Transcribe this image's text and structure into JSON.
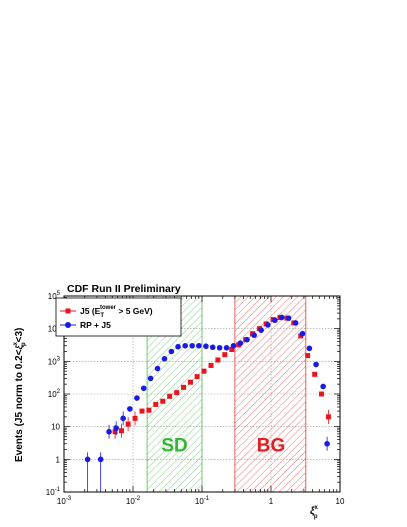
{
  "chart_data": {
    "type": "scatter",
    "title": "CDF Run II Preliminary",
    "ylabel": {
      "main": "Events (J5 norm to 0.2<",
      "xi_sup": "x",
      "xi_sub": "p",
      "end": "<3)"
    },
    "xlabel": {
      "sup": "x",
      "sub": "p"
    },
    "x_scale": "log",
    "y_scale": "log",
    "xlim": [
      0.001,
      10
    ],
    "ylim": [
      0.1,
      100000
    ],
    "x_ticks": [
      {
        "value": 0.001,
        "base": "10",
        "exp": "-3"
      },
      {
        "value": 0.01,
        "base": "10",
        "exp": "-2"
      },
      {
        "value": 0.1,
        "base": "10",
        "exp": "-1"
      },
      {
        "value": 1,
        "base": "1",
        "exp": ""
      },
      {
        "value": 10,
        "base": "10",
        "exp": ""
      }
    ],
    "y_ticks": [
      {
        "value": 0.1,
        "base": "10",
        "exp": "-1"
      },
      {
        "value": 1,
        "base": "1",
        "exp": ""
      },
      {
        "value": 10,
        "base": "10",
        "exp": ""
      },
      {
        "value": 100,
        "base": "10",
        "exp": "2"
      },
      {
        "value": 1000,
        "base": "10",
        "exp": "3"
      },
      {
        "value": 10000,
        "base": "10",
        "exp": "4"
      },
      {
        "value": 100000,
        "base": "10",
        "exp": "5"
      }
    ],
    "grid": true,
    "legend": {
      "position": "top-left",
      "entries": [
        {
          "label_main": "J5 (E",
          "label_sub": "T",
          "label_sup": "tower",
          "label_end": " > 5 GeV)",
          "color": "#e8141e",
          "marker": "square"
        },
        {
          "label_main": "RP + J5",
          "label_sub": "",
          "label_sup": "",
          "label_end": "",
          "color": "#1a1ae6",
          "marker": "circle"
        }
      ]
    },
    "bands": [
      {
        "label": "SD",
        "x_range": [
          0.016,
          0.1
        ],
        "color": "#33b533"
      },
      {
        "label": "BG",
        "x_range": [
          0.3,
          3.2
        ],
        "color": "#e02020"
      }
    ],
    "annotations": [
      {
        "text": "SD",
        "x": 0.04,
        "y": 3,
        "color": "#33b533"
      },
      {
        "text": "BG",
        "x": 1.0,
        "y": 3,
        "color": "#e02020"
      }
    ],
    "series": [
      {
        "name": "J5 (E_T^tower > 5 GeV)",
        "color": "#e8141e",
        "marker": "square",
        "points": [
          [
            0.0055,
            7
          ],
          [
            0.0068,
            7.5
          ],
          [
            0.0085,
            12
          ],
          [
            0.0107,
            18
          ],
          [
            0.0135,
            30
          ],
          [
            0.017,
            32
          ],
          [
            0.0214,
            48
          ],
          [
            0.027,
            60
          ],
          [
            0.034,
            85
          ],
          [
            0.043,
            110
          ],
          [
            0.054,
            160
          ],
          [
            0.068,
            230
          ],
          [
            0.085,
            340
          ],
          [
            0.107,
            500
          ],
          [
            0.135,
            750
          ],
          [
            0.17,
            1100
          ],
          [
            0.214,
            1600
          ],
          [
            0.27,
            2300
          ],
          [
            0.34,
            3200
          ],
          [
            0.43,
            4600
          ],
          [
            0.54,
            7000
          ],
          [
            0.68,
            10000
          ],
          [
            0.85,
            14000
          ],
          [
            1.07,
            19000
          ],
          [
            1.35,
            22000
          ],
          [
            1.7,
            21000
          ],
          [
            2.14,
            15000
          ],
          [
            2.7,
            6000
          ],
          [
            3.4,
            1500
          ],
          [
            4.3,
            400
          ],
          [
            5.4,
            100
          ],
          [
            6.8,
            20
          ]
        ]
      },
      {
        "name": "RP + J5",
        "color": "#1a1ae6",
        "marker": "circle",
        "points": [
          [
            0.0022,
            1
          ],
          [
            0.0034,
            1
          ],
          [
            0.0045,
            7
          ],
          [
            0.0057,
            9
          ],
          [
            0.0072,
            18
          ],
          [
            0.009,
            35
          ],
          [
            0.0114,
            75
          ],
          [
            0.0143,
            150
          ],
          [
            0.018,
            300
          ],
          [
            0.0227,
            600
          ],
          [
            0.0286,
            1200
          ],
          [
            0.036,
            2000
          ],
          [
            0.045,
            2800
          ],
          [
            0.057,
            3000
          ],
          [
            0.072,
            3000
          ],
          [
            0.09,
            3000
          ],
          [
            0.114,
            2900
          ],
          [
            0.143,
            2700
          ],
          [
            0.18,
            2600
          ],
          [
            0.227,
            2600
          ],
          [
            0.286,
            3000
          ],
          [
            0.36,
            3600
          ],
          [
            0.45,
            4600
          ],
          [
            0.57,
            6300
          ],
          [
            0.72,
            9000
          ],
          [
            0.9,
            13000
          ],
          [
            1.14,
            18000
          ],
          [
            1.43,
            22000
          ],
          [
            1.8,
            21000
          ],
          [
            2.27,
            15000
          ],
          [
            2.86,
            7000
          ],
          [
            3.6,
            2500
          ],
          [
            4.5,
            800
          ],
          [
            5.7,
            170
          ],
          [
            6.5,
            3
          ]
        ]
      }
    ]
  }
}
